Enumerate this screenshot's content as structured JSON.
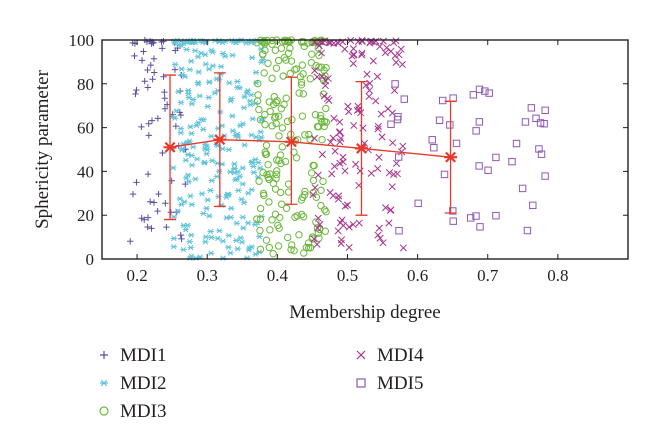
{
  "chart_data": {
    "type": "scatter",
    "xlabel": "Membership degree",
    "ylabel": "Sphericity parameter",
    "xlim": [
      0.15,
      0.9
    ],
    "ylim": [
      0,
      100
    ],
    "x_ticks": [
      "0.2",
      "0.3",
      "0.4",
      "0.5",
      "0.6",
      "0.7",
      "0.8"
    ],
    "y_ticks": [
      "0",
      "20",
      "40",
      "60",
      "80",
      "100"
    ],
    "grid": false,
    "legend_position": "bottom",
    "series": [
      {
        "name": "MDI1",
        "marker": "plus",
        "color": "#5b4fa0",
        "x_range": [
          0.19,
          0.27
        ],
        "y_range": [
          0,
          100
        ],
        "count": 70
      },
      {
        "name": "MDI2",
        "marker": "asterisk",
        "color": "#5fc3d8",
        "x_range": [
          0.25,
          0.38
        ],
        "y_range": [
          0,
          100
        ],
        "count": 260
      },
      {
        "name": "MDI3",
        "marker": "circle",
        "color": "#6ab83a",
        "x_range": [
          0.37,
          0.47
        ],
        "y_range": [
          2,
          100
        ],
        "count": 200
      },
      {
        "name": "MDI4",
        "marker": "x",
        "color": "#a6338e",
        "x_range": [
          0.45,
          0.58
        ],
        "y_range": [
          5,
          100
        ],
        "count": 140
      },
      {
        "name": "MDI5",
        "marker": "square",
        "color": "#8e5ab5",
        "x_range": [
          0.56,
          0.79
        ],
        "y_range": [
          11,
          80
        ],
        "count": 45
      }
    ],
    "mean_line": {
      "color": "#e8392a",
      "points": [
        {
          "x": 0.247,
          "y": 51,
          "err_low": 18,
          "err_high": 84
        },
        {
          "x": 0.318,
          "y": 54.5,
          "err_low": 24,
          "err_high": 85
        },
        {
          "x": 0.42,
          "y": 53.5,
          "err_low": 25,
          "err_high": 83
        },
        {
          "x": 0.52,
          "y": 50.5,
          "err_low": 20,
          "err_high": 81
        },
        {
          "x": 0.647,
          "y": 46.5,
          "err_low": 21,
          "err_high": 72
        }
      ]
    }
  }
}
